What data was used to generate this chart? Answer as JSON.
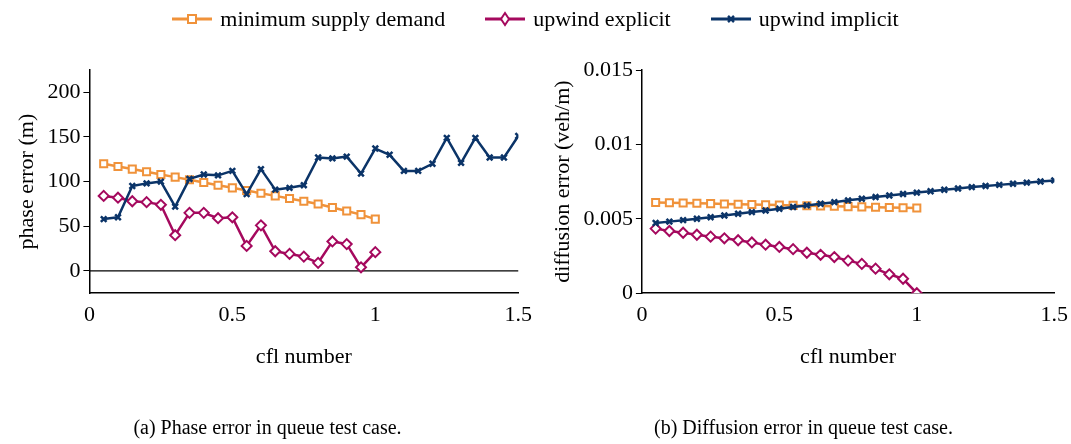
{
  "chart_data": [
    {
      "type": "line",
      "xlabel": "cfl number",
      "ylabel": "phase error (m)",
      "legend": "top",
      "grid": false,
      "line_style": "solid",
      "xlim": [
        0,
        1.5
      ],
      "xticks": [
        0,
        0.5,
        1,
        1.5
      ],
      "ylim": [
        -25,
        225
      ],
      "yticks": [
        0,
        50,
        100,
        150,
        200
      ],
      "ref_lines": [
        {
          "axis": "y",
          "value": 0,
          "color": "#000000"
        }
      ],
      "annotations": [
        "(a)  Phase error in queue test case."
      ],
      "series": [
        {
          "name": "minimum supply demand",
          "color": "#f0923a",
          "marker": "square",
          "x": [
            0.05,
            0.1,
            0.15,
            0.2,
            0.25,
            0.3,
            0.35,
            0.4,
            0.45,
            0.5,
            0.55,
            0.6,
            0.65,
            0.7,
            0.75,
            0.8,
            0.85,
            0.9,
            0.95,
            1.0
          ],
          "values": [
            120,
            117,
            114,
            111,
            108,
            105,
            102,
            99,
            96,
            93,
            90,
            87,
            84,
            81,
            78,
            75,
            71,
            67,
            63,
            58
          ]
        },
        {
          "name": "upwind explicit",
          "color": "#a5095e",
          "marker": "diamond",
          "x": [
            0.05,
            0.1,
            0.15,
            0.2,
            0.25,
            0.3,
            0.35,
            0.4,
            0.45,
            0.5,
            0.55,
            0.6,
            0.65,
            0.7,
            0.75,
            0.8,
            0.85,
            0.9,
            0.95,
            1.0
          ],
          "values": [
            84,
            82,
            78,
            77,
            74,
            40,
            65,
            65,
            59,
            60,
            28,
            51,
            22,
            19,
            16,
            9,
            33,
            30,
            4,
            21
          ]
        },
        {
          "name": "upwind implicit",
          "color": "#0b3468",
          "marker": "cross",
          "x": [
            0.05,
            0.1,
            0.15,
            0.2,
            0.25,
            0.3,
            0.35,
            0.4,
            0.45,
            0.5,
            0.55,
            0.6,
            0.65,
            0.7,
            0.75,
            0.8,
            0.85,
            0.9,
            0.95,
            1.0,
            1.05,
            1.1,
            1.15,
            1.2,
            1.25,
            1.3,
            1.35,
            1.4,
            1.45,
            1.5
          ],
          "values": [
            58,
            60,
            95,
            98,
            100,
            72,
            103,
            108,
            107,
            112,
            86,
            114,
            91,
            93,
            96,
            127,
            126,
            128,
            109,
            137,
            130,
            112,
            112,
            120,
            149,
            121,
            149,
            127,
            127,
            151
          ]
        }
      ]
    },
    {
      "type": "line",
      "xlabel": "cfl number",
      "ylabel": "diffusion error (veh/m)",
      "grid": false,
      "line_style": "solid",
      "xlim": [
        0,
        1.5
      ],
      "xticks": [
        0,
        0.5,
        1,
        1.5
      ],
      "ylim": [
        0,
        0.015
      ],
      "yticks": [
        0,
        0.005,
        0.01,
        0.015
      ],
      "annotations": [
        "(b)  Diffusion error in queue test case."
      ],
      "series": [
        {
          "color": "#f0923a",
          "marker": "square",
          "x": [
            0.05,
            0.1,
            0.15,
            0.2,
            0.25,
            0.3,
            0.35,
            0.4,
            0.45,
            0.5,
            0.55,
            0.6,
            0.65,
            0.7,
            0.75,
            0.8,
            0.85,
            0.9,
            0.95,
            1.0
          ],
          "values": [
            0.0061,
            0.00608,
            0.00606,
            0.00604,
            0.00602,
            0.006,
            0.00598,
            0.00596,
            0.00594,
            0.00592,
            0.0059,
            0.00588,
            0.00586,
            0.00584,
            0.00582,
            0.0058,
            0.00578,
            0.00576,
            0.00574,
            0.00572
          ]
        },
        {
          "color": "#a5095e",
          "marker": "diamond",
          "x": [
            0.05,
            0.1,
            0.15,
            0.2,
            0.25,
            0.3,
            0.35,
            0.4,
            0.45,
            0.5,
            0.55,
            0.6,
            0.65,
            0.7,
            0.75,
            0.8,
            0.85,
            0.9,
            0.95,
            1.0
          ],
          "values": [
            0.00434,
            0.00418,
            0.00406,
            0.00393,
            0.0038,
            0.00369,
            0.00356,
            0.00341,
            0.00326,
            0.00311,
            0.00296,
            0.00272,
            0.00258,
            0.00243,
            0.00219,
            0.00197,
            0.00165,
            0.00127,
            0.00097,
            0
          ]
        },
        {
          "color": "#0b3468",
          "marker": "cross",
          "x": [
            0.05,
            0.1,
            0.15,
            0.2,
            0.25,
            0.3,
            0.35,
            0.4,
            0.45,
            0.5,
            0.55,
            0.6,
            0.65,
            0.7,
            0.75,
            0.8,
            0.85,
            0.9,
            0.95,
            1.0,
            1.05,
            1.1,
            1.15,
            1.2,
            1.25,
            1.3,
            1.35,
            1.4,
            1.45,
            1.5
          ],
          "values": [
            0.00472,
            0.00481,
            0.00491,
            0.005,
            0.00511,
            0.00522,
            0.00534,
            0.00545,
            0.00556,
            0.00567,
            0.00579,
            0.0059,
            0.00601,
            0.00612,
            0.00624,
            0.00635,
            0.00646,
            0.00657,
            0.00667,
            0.00676,
            0.00685,
            0.00695,
            0.00704,
            0.00713,
            0.00721,
            0.00728,
            0.00736,
            0.00743,
            0.00751,
            0.00758
          ]
        }
      ]
    }
  ]
}
